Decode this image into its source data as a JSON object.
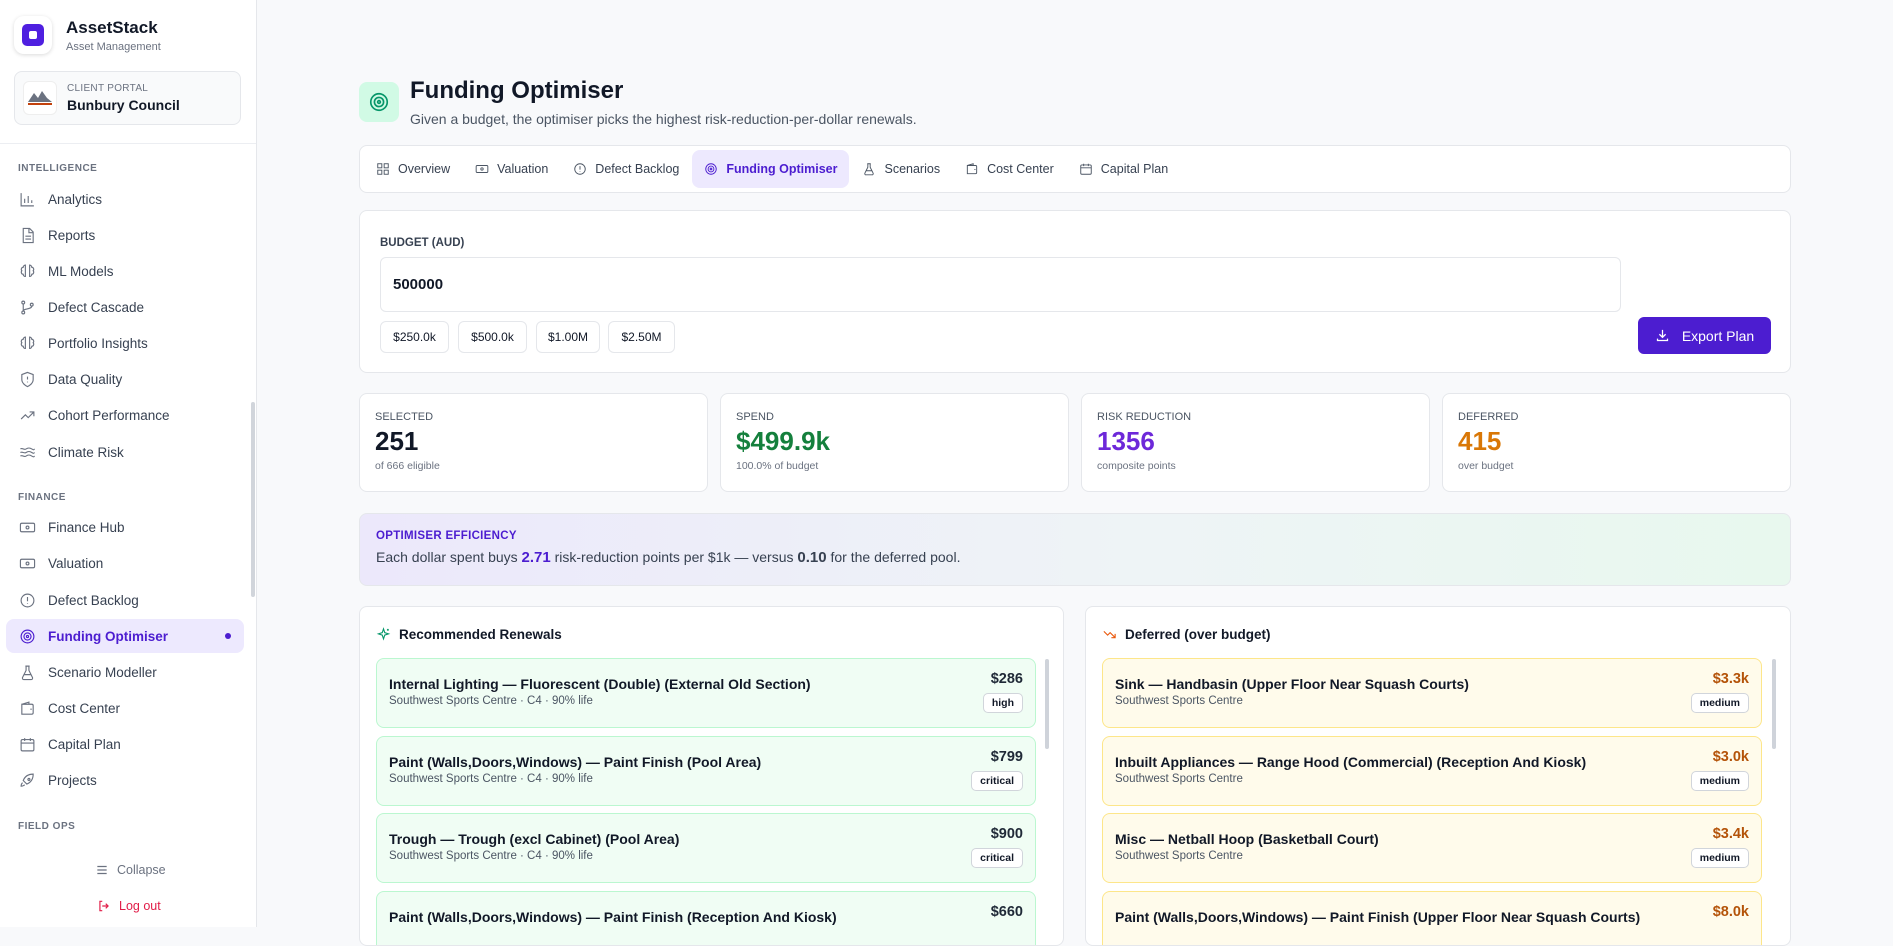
{
  "sidebar": {
    "brand": {
      "title": "AssetStack",
      "subtitle": "Asset Management"
    },
    "portal": {
      "label": "CLIENT PORTAL",
      "name": "Bunbury Council",
      "logo_text": "BUNBURY"
    },
    "sections": {
      "intelligence": "INTELLIGENCE",
      "finance": "FINANCE",
      "field_ops": "FIELD OPS"
    },
    "items": [
      {
        "label": "Analytics",
        "icon": "bar-chart-icon"
      },
      {
        "label": "Reports",
        "icon": "document-icon"
      },
      {
        "label": "ML Models",
        "icon": "brain-icon"
      },
      {
        "label": "Defect Cascade",
        "icon": "branch-icon"
      },
      {
        "label": "Portfolio Insights",
        "icon": "brain-icon"
      },
      {
        "label": "Data Quality",
        "icon": "shield-icon"
      },
      {
        "label": "Cohort Performance",
        "icon": "trend-up-icon"
      },
      {
        "label": "Climate Risk",
        "icon": "waves-icon"
      },
      {
        "label": "Finance Hub",
        "icon": "banknote-icon"
      },
      {
        "label": "Valuation",
        "icon": "banknote-icon"
      },
      {
        "label": "Defect Backlog",
        "icon": "alert-circle-icon"
      },
      {
        "label": "Funding Optimiser",
        "icon": "target-icon"
      },
      {
        "label": "Scenario Modeller",
        "icon": "flask-icon"
      },
      {
        "label": "Cost Center",
        "icon": "wallet-icon"
      },
      {
        "label": "Capital Plan",
        "icon": "calendar-icon"
      },
      {
        "label": "Projects",
        "icon": "rocket-icon"
      }
    ],
    "collapse": "Collapse",
    "logout": "Log out"
  },
  "header": {
    "title": "Funding Optimiser",
    "subtitle": "Given a budget, the optimiser picks the highest risk-reduction-per-dollar renewals."
  },
  "tabs": [
    {
      "label": "Overview",
      "icon": "grid-icon"
    },
    {
      "label": "Valuation",
      "icon": "banknote-icon"
    },
    {
      "label": "Defect Backlog",
      "icon": "alert-circle-icon"
    },
    {
      "label": "Funding Optimiser",
      "icon": "target-icon"
    },
    {
      "label": "Scenarios",
      "icon": "flask-icon"
    },
    {
      "label": "Cost Center",
      "icon": "wallet-icon"
    },
    {
      "label": "Capital Plan",
      "icon": "calendar-icon"
    }
  ],
  "budget": {
    "label": "BUDGET (AUD)",
    "value": "500000",
    "presets": [
      "$250.0k",
      "$500.0k",
      "$1.00M",
      "$2.50M"
    ],
    "export_label": "Export Plan"
  },
  "stats": [
    {
      "label": "SELECTED",
      "value": "251",
      "note": "of 666 eligible",
      "color": "#111827"
    },
    {
      "label": "SPEND",
      "value": "$499.9k",
      "note": "100.0% of budget",
      "color": "#15803d"
    },
    {
      "label": "RISK REDUCTION",
      "value": "1356",
      "note": "composite points",
      "color": "#6d28d9"
    },
    {
      "label": "DEFERRED",
      "value": "415",
      "note": "over budget",
      "color": "#d97706"
    }
  ],
  "efficiency": {
    "label": "OPTIMISER EFFICIENCY",
    "prefix": "Each dollar spent buys",
    "value": "2.71",
    "middle": "risk-reduction points per $1k — versus",
    "deferred_value": "0.10",
    "suffix": "for the deferred pool."
  },
  "recommended": {
    "title": "Recommended Renewals",
    "items": [
      {
        "title": "Internal Lighting — Fluorescent (Double) (External Old Section)",
        "sub": "Southwest Sports Centre · C4 · 90% life",
        "amount": "$286",
        "badge": "high"
      },
      {
        "title": "Paint (Walls,Doors,Windows) — Paint Finish (Pool Area)",
        "sub": "Southwest Sports Centre · C4 · 90% life",
        "amount": "$799",
        "badge": "critical"
      },
      {
        "title": "Trough — Trough (excl Cabinet) (Pool Area)",
        "sub": "Southwest Sports Centre · C4 · 90% life",
        "amount": "$900",
        "badge": "critical"
      },
      {
        "title": "Paint (Walls,Doors,Windows) — Paint Finish (Reception And Kiosk)",
        "sub": "",
        "amount": "$660",
        "badge": ""
      }
    ]
  },
  "deferred": {
    "title": "Deferred (over budget)",
    "items": [
      {
        "title": "Sink — Handbasin (Upper Floor Near Squash Courts)",
        "sub": "Southwest Sports Centre",
        "amount": "$3.3k",
        "badge": "medium"
      },
      {
        "title": "Inbuilt Appliances — Range Hood (Commercial) (Reception And Kiosk)",
        "sub": "Southwest Sports Centre",
        "amount": "$3.0k",
        "badge": "medium"
      },
      {
        "title": "Misc — Netball Hoop (Basketball Court)",
        "sub": "Southwest Sports Centre",
        "amount": "$3.4k",
        "badge": "medium"
      },
      {
        "title": "Paint (Walls,Doors,Windows) — Paint Finish (Upper Floor Near Squash Courts)",
        "sub": "",
        "amount": "$8.0k",
        "badge": ""
      }
    ]
  },
  "colors": {
    "accent": "#4c1dd0",
    "success": "#15803d",
    "warning": "#d97706",
    "deferred_amount": "#b45309"
  }
}
